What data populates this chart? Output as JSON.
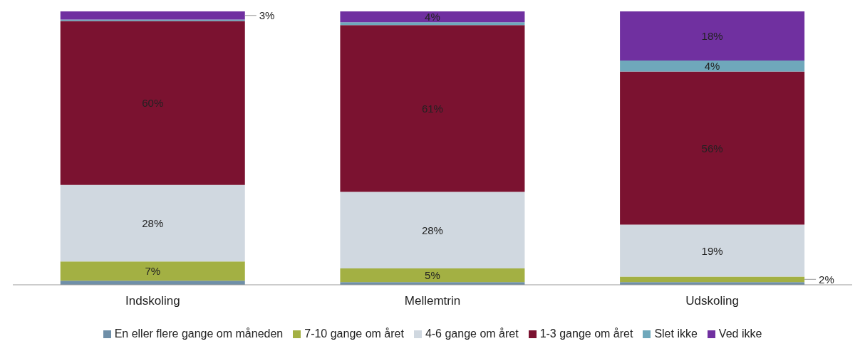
{
  "chart_data": {
    "type": "bar",
    "stacked": true,
    "categories": [
      "Indskoling",
      "Mellemtrin",
      "Udskoling"
    ],
    "legend": "bottom",
    "series": [
      {
        "name": "En eller flere gange om måneden",
        "color": "#6f8fa8",
        "values": [
          1.5,
          1,
          1
        ],
        "value_labels": [
          null,
          null,
          null
        ]
      },
      {
        "name": "7-10 gange om året",
        "color": "#a3b043",
        "values": [
          7,
          5,
          2
        ],
        "value_labels": [
          "7%",
          "5%",
          "2%"
        ]
      },
      {
        "name": "4-6 gange om året",
        "color": "#d0d8e0",
        "values": [
          28,
          28,
          19
        ],
        "value_labels": [
          "28%",
          "28%",
          "19%"
        ]
      },
      {
        "name": "1-3 gange om året",
        "color": "#7b1230",
        "values": [
          60,
          61,
          56
        ],
        "value_labels": [
          "60%",
          "61%",
          "56%"
        ]
      },
      {
        "name": "Slet ikke",
        "color": "#6fa8bb",
        "values": [
          0.5,
          1,
          4
        ],
        "value_labels": [
          null,
          null,
          "4%"
        ]
      },
      {
        "name": "Ved ikke",
        "color": "#7030a0",
        "values": [
          3,
          4,
          18
        ],
        "value_labels": [
          "3%",
          "4%",
          "18%"
        ]
      }
    ]
  }
}
